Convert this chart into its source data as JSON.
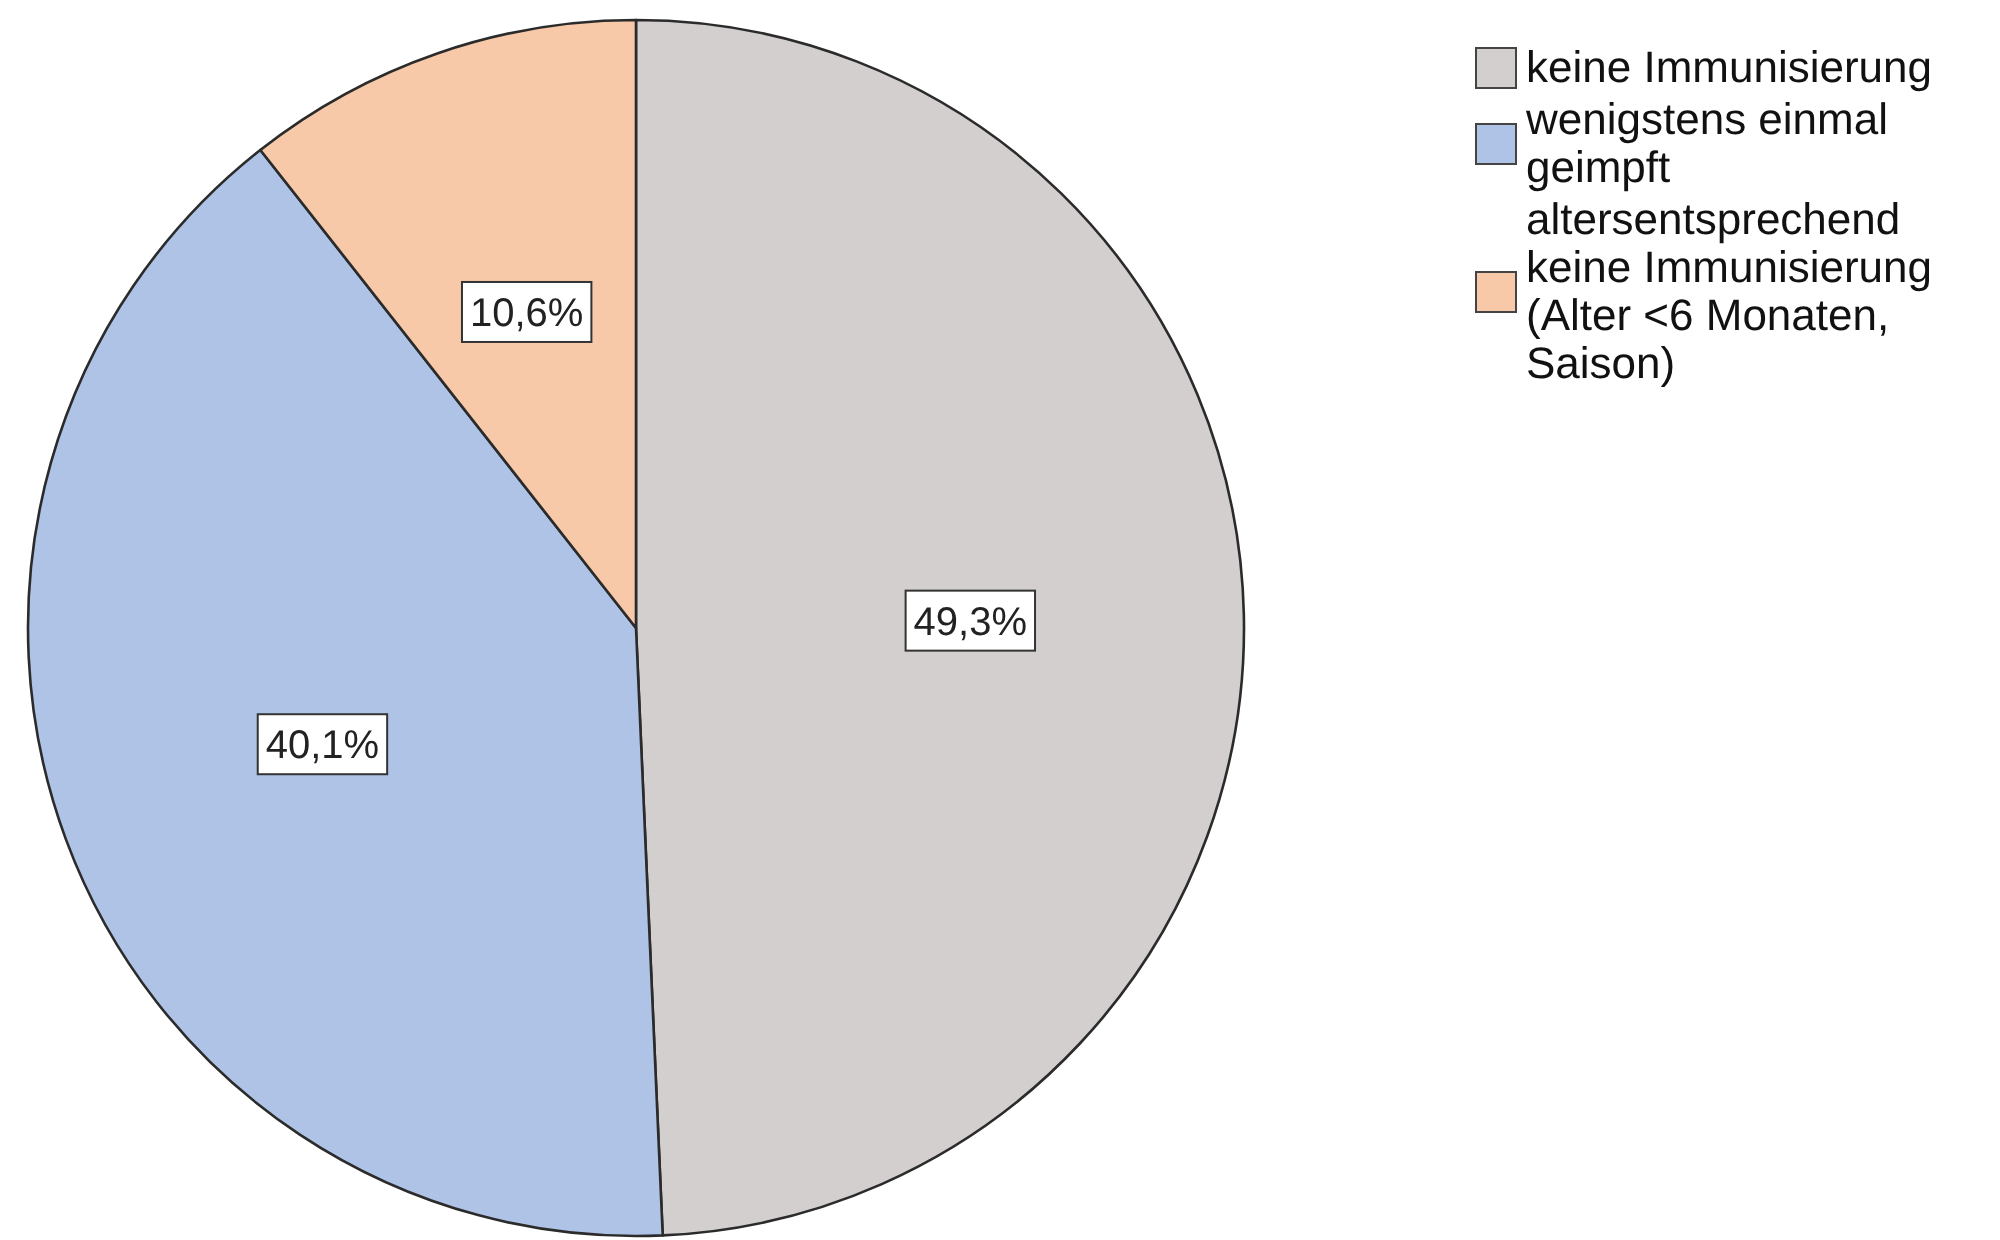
{
  "chart_data": {
    "type": "pie",
    "categories": [
      "keine Immunisierung",
      "wenigstens einmal geimpft",
      "altersentsprechend keine Immunisierung (Alter <6 Monaten, Saison)"
    ],
    "values": [
      49.3,
      40.1,
      10.6
    ],
    "colors": [
      "#d3cfcf",
      "#aec3e6",
      "#f7c9a9"
    ],
    "value_labels": [
      "49,3%",
      "40,1%",
      "10,6%"
    ],
    "legend": "top right"
  }
}
